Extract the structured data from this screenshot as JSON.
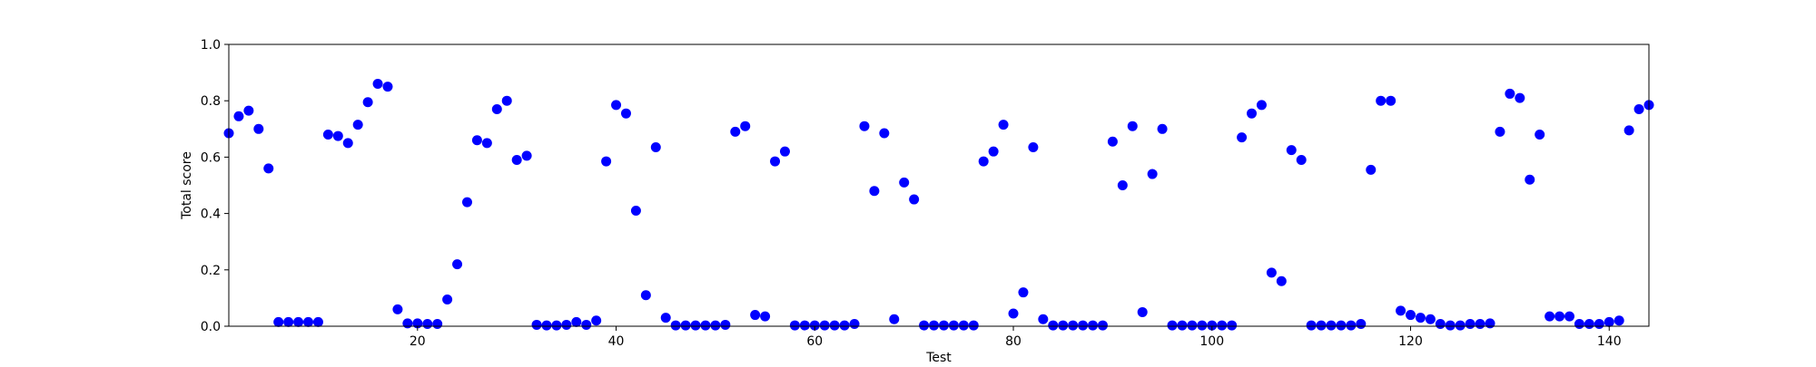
{
  "chart_data": {
    "type": "scatter",
    "title": "",
    "xlabel": "Test",
    "ylabel": "Total score",
    "xlim": [
      1,
      144
    ],
    "ylim": [
      0.0,
      1.0
    ],
    "grid": false,
    "legend": "none",
    "marker_color": "#0000ff",
    "xticks": [
      20,
      40,
      60,
      80,
      100,
      120,
      140
    ],
    "xtick_labels": [
      "20",
      "40",
      "60",
      "80",
      "100",
      "120",
      "140"
    ],
    "yticks": [
      0.0,
      0.2,
      0.4,
      0.6,
      0.8,
      1.0
    ],
    "ytick_labels": [
      "0.0",
      "0.2",
      "0.4",
      "0.6",
      "0.8",
      "1.0"
    ],
    "series": [
      {
        "x": [
          1,
          2,
          3,
          4,
          5,
          6,
          7,
          8,
          9,
          10,
          11,
          12,
          13,
          14,
          15,
          16,
          17,
          18,
          19,
          20,
          21,
          22,
          23,
          24,
          25,
          26,
          27,
          28,
          29,
          30,
          31,
          32,
          33,
          34,
          35,
          36,
          37,
          38,
          39,
          40,
          41,
          42,
          43,
          44,
          45,
          46,
          47,
          48,
          49,
          50,
          51,
          52,
          53,
          54,
          55,
          56,
          57,
          58,
          59,
          60,
          61,
          62,
          63,
          64,
          65,
          66,
          67,
          68,
          69,
          70,
          71,
          72,
          73,
          74,
          75,
          76,
          77,
          78,
          79,
          80,
          81,
          82,
          83,
          84,
          85,
          86,
          87,
          88,
          89,
          90,
          91,
          92,
          93,
          94,
          95,
          96,
          97,
          98,
          99,
          100,
          101,
          102,
          103,
          104,
          105,
          106,
          107,
          108,
          109,
          110,
          111,
          112,
          113,
          114,
          115,
          116,
          117,
          118,
          119,
          120,
          121,
          122,
          123,
          124,
          125,
          126,
          127,
          128,
          129,
          130,
          131,
          132,
          133,
          134,
          135,
          136,
          137,
          138,
          139,
          140,
          141,
          142,
          143,
          144
        ],
        "y": [
          0.685,
          0.745,
          0.765,
          0.7,
          0.56,
          0.015,
          0.015,
          0.015,
          0.015,
          0.015,
          0.68,
          0.675,
          0.65,
          0.715,
          0.795,
          0.86,
          0.85,
          0.06,
          0.01,
          0.01,
          0.008,
          0.008,
          0.095,
          0.22,
          0.44,
          0.66,
          0.65,
          0.77,
          0.8,
          0.59,
          0.605,
          0.005,
          0.003,
          0.003,
          0.005,
          0.015,
          0.005,
          0.02,
          0.585,
          0.785,
          0.755,
          0.41,
          0.11,
          0.635,
          0.03,
          0.003,
          0.003,
          0.003,
          0.003,
          0.003,
          0.005,
          0.69,
          0.71,
          0.04,
          0.035,
          0.585,
          0.62,
          0.003,
          0.003,
          0.003,
          0.003,
          0.003,
          0.003,
          0.008,
          0.71,
          0.48,
          0.685,
          0.025,
          0.51,
          0.45,
          0.003,
          0.003,
          0.003,
          0.003,
          0.003,
          0.003,
          0.585,
          0.62,
          0.715,
          0.045,
          0.12,
          0.635,
          0.025,
          0.003,
          0.003,
          0.003,
          0.003,
          0.003,
          0.003,
          0.655,
          0.5,
          0.71,
          0.05,
          0.54,
          0.7,
          0.003,
          0.003,
          0.003,
          0.003,
          0.003,
          0.003,
          0.003,
          0.67,
          0.755,
          0.785,
          0.19,
          0.16,
          0.625,
          0.59,
          0.003,
          0.003,
          0.003,
          0.003,
          0.003,
          0.008,
          0.555,
          0.8,
          0.8,
          0.055,
          0.04,
          0.03,
          0.025,
          0.008,
          0.003,
          0.003,
          0.008,
          0.008,
          0.01,
          0.69,
          0.825,
          0.81,
          0.52,
          0.68,
          0.035,
          0.035,
          0.035,
          0.008,
          0.008,
          0.008,
          0.015,
          0.02,
          0.695,
          0.77,
          0.785
        ]
      }
    ]
  }
}
